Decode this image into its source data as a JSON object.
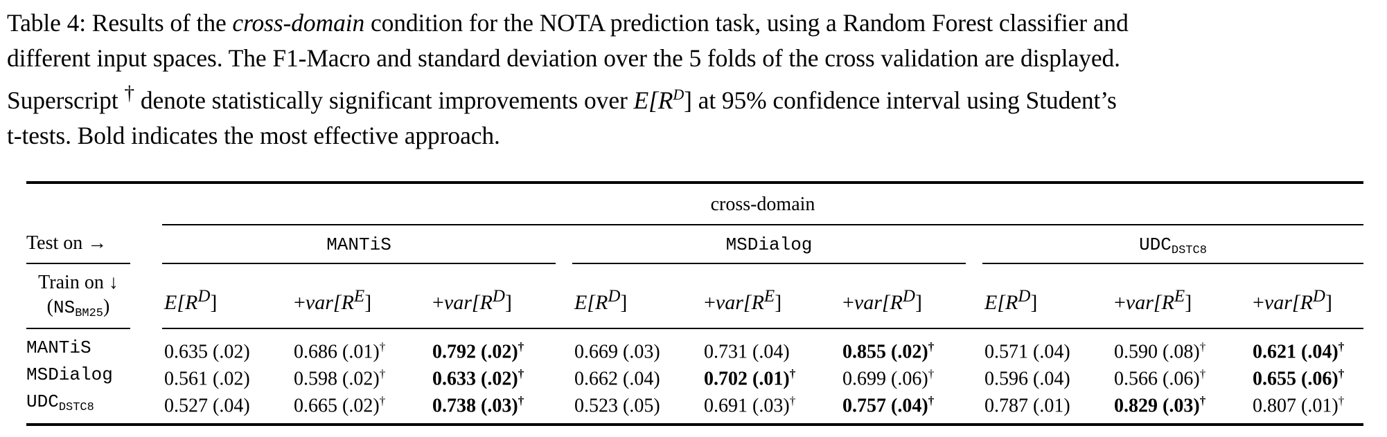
{
  "caption": {
    "line1_a": "Table 4: Results of the ",
    "line1_em": "cross-domain",
    "line1_b": " condition for the NOTA prediction task, using a Random Forest classifier and",
    "line2": "different input spaces. The F1-Macro and standard deviation over the 5 folds of the cross validation are displayed.",
    "line3_a": "Superscript ",
    "line3_dagger": "†",
    "line3_b": " denote statistically significant improvements over ",
    "line3_math": "E[R",
    "line3_math_sup": "D",
    "line3_math_end": "]",
    "line3_c": " at 95% confidence interval using Student’s",
    "line4": "t-tests. Bold indicates the most effective approach."
  },
  "table": {
    "group_header": "cross-domain",
    "test_on_label": "Test on →",
    "train_on_label": "Train on ↓",
    "ns_label": "NS",
    "ns_sub": "BM25",
    "test_sets": [
      {
        "name": "MANTiS",
        "sub": ""
      },
      {
        "name": "MSDialog",
        "sub": ""
      },
      {
        "name": "UDC",
        "sub": "DSTC8"
      }
    ],
    "col_headers": [
      {
        "pre": "",
        "fn": "E[R",
        "sup": "D",
        "post": "]"
      },
      {
        "pre": "+",
        "fn": "var[R",
        "sup": "E",
        "post": "]"
      },
      {
        "pre": "+",
        "fn": "var[R",
        "sup": "D",
        "post": "]"
      }
    ],
    "rows": [
      {
        "name": "MANTiS",
        "sub": "",
        "cells": [
          {
            "v": "0.635 (.02)",
            "b": false,
            "d": ""
          },
          {
            "v": "0.686 (.01)",
            "b": false,
            "d": "†"
          },
          {
            "v": "0.792 (.02)",
            "b": true,
            "d": "†"
          },
          {
            "v": "0.669 (.03)",
            "b": false,
            "d": ""
          },
          {
            "v": "0.731 (.04)",
            "b": false,
            "d": ""
          },
          {
            "v": "0.855 (.02)",
            "b": true,
            "d": "†"
          },
          {
            "v": "0.571 (.04)",
            "b": false,
            "d": ""
          },
          {
            "v": "0.590 (.08)",
            "b": false,
            "d": "†"
          },
          {
            "v": "0.621 (.04)",
            "b": true,
            "d": "†"
          }
        ]
      },
      {
        "name": "MSDialog",
        "sub": "",
        "cells": [
          {
            "v": "0.561 (.02)",
            "b": false,
            "d": ""
          },
          {
            "v": "0.598 (.02)",
            "b": false,
            "d": "†"
          },
          {
            "v": "0.633 (.02)",
            "b": true,
            "d": "†"
          },
          {
            "v": "0.662 (.04)",
            "b": false,
            "d": ""
          },
          {
            "v": "0.702 (.01)",
            "b": true,
            "d": "†"
          },
          {
            "v": "0.699 (.06)",
            "b": false,
            "d": "†"
          },
          {
            "v": "0.596 (.04)",
            "b": false,
            "d": ""
          },
          {
            "v": "0.566 (.06)",
            "b": false,
            "d": "†"
          },
          {
            "v": "0.655 (.06)",
            "b": true,
            "d": "†"
          }
        ]
      },
      {
        "name": "UDC",
        "sub": "DSTC8",
        "cells": [
          {
            "v": "0.527 (.04)",
            "b": false,
            "d": ""
          },
          {
            "v": "0.665 (.02)",
            "b": false,
            "d": "†"
          },
          {
            "v": "0.738 (.03)",
            "b": true,
            "d": "†"
          },
          {
            "v": "0.523 (.05)",
            "b": false,
            "d": ""
          },
          {
            "v": "0.691 (.03)",
            "b": false,
            "d": "†"
          },
          {
            "v": "0.757 (.04)",
            "b": true,
            "d": "†"
          },
          {
            "v": "0.787 (.01)",
            "b": false,
            "d": ""
          },
          {
            "v": "0.829 (.03)",
            "b": true,
            "d": "†"
          },
          {
            "v": "0.807 (.01)",
            "b": false,
            "d": "†"
          }
        ]
      }
    ]
  }
}
